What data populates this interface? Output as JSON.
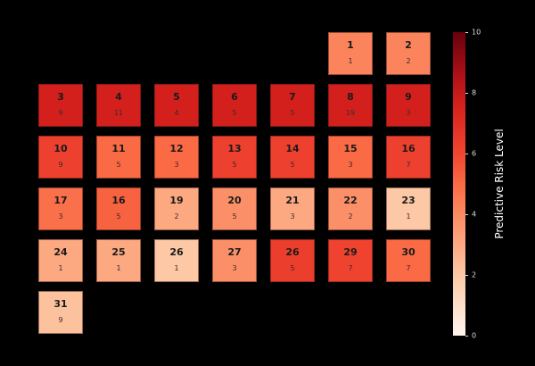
{
  "chart_data": {
    "type": "heatmap",
    "colorbar": {
      "label": "Predictive Risk Level",
      "range": [
        0,
        10
      ],
      "ticks": [
        "0",
        "2",
        "4",
        "6",
        "8",
        "10"
      ],
      "colormap": "Reds"
    },
    "cells": [
      {
        "label": "1",
        "count": "1",
        "level": 4.2
      },
      {
        "label": "2",
        "count": "2",
        "level": 4.2
      },
      {
        "label": "3",
        "count": "9",
        "level": 7.6
      },
      {
        "label": "4",
        "count": "11",
        "level": 7.6
      },
      {
        "label": "5",
        "count": "4",
        "level": 7.6
      },
      {
        "label": "6",
        "count": "5",
        "level": 7.6
      },
      {
        "label": "7",
        "count": "5",
        "level": 7.6
      },
      {
        "label": "8",
        "count": "19",
        "level": 7.6
      },
      {
        "label": "9",
        "count": "3",
        "level": 7.6
      },
      {
        "label": "10",
        "count": "9",
        "level": 6.2
      },
      {
        "label": "11",
        "count": "5",
        "level": 5
      },
      {
        "label": "12",
        "count": "3",
        "level": 5
      },
      {
        "label": "13",
        "count": "5",
        "level": 6.2
      },
      {
        "label": "14",
        "count": "5",
        "level": 6.2
      },
      {
        "label": "15",
        "count": "3",
        "level": 5
      },
      {
        "label": "16",
        "count": "7",
        "level": 6.2
      },
      {
        "label": "17",
        "count": "3",
        "level": 4.8
      },
      {
        "label": "16",
        "count": "5",
        "level": 5.2
      },
      {
        "label": "19",
        "count": "2",
        "level": 3
      },
      {
        "label": "20",
        "count": "5",
        "level": 3.8
      },
      {
        "label": "21",
        "count": "3",
        "level": 3
      },
      {
        "label": "22",
        "count": "2",
        "level": 3.8
      },
      {
        "label": "23",
        "count": "1",
        "level": 2
      },
      {
        "label": "24",
        "count": "1",
        "level": 3
      },
      {
        "label": "25",
        "count": "1",
        "level": 3
      },
      {
        "label": "26",
        "count": "1",
        "level": 2
      },
      {
        "label": "27",
        "count": "3",
        "level": 3.8
      },
      {
        "label": "26",
        "count": "5",
        "level": 6.3
      },
      {
        "label": "29",
        "count": "7",
        "level": 6.1
      },
      {
        "label": "30",
        "count": "7",
        "level": 5
      },
      {
        "label": "31",
        "count": "9",
        "level": 2.2
      }
    ],
    "first_column_offset": 5,
    "columns": 7
  }
}
